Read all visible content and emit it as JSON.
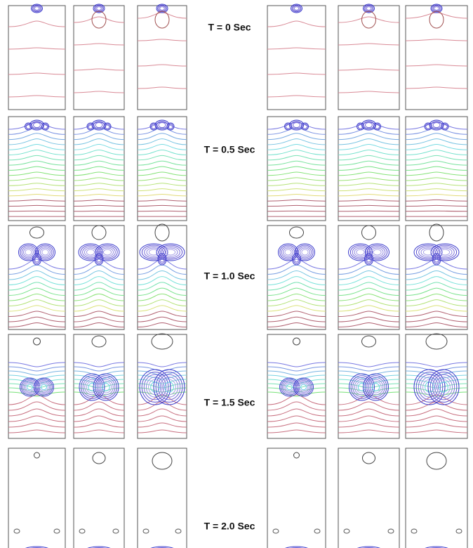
{
  "labels": [
    "T = 0 Sec",
    "T = 0.5 Sec",
    "T = 1.0 Sec",
    "T = 1.5 Sec",
    "T = 2.0 Sec"
  ]
}
